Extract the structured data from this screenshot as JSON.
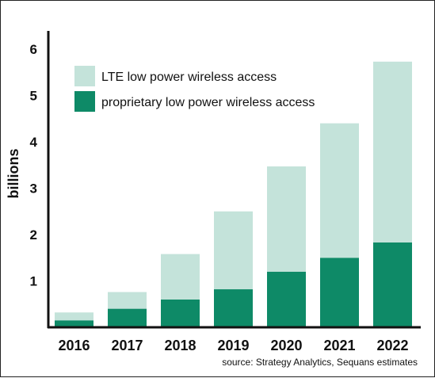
{
  "chart_data": {
    "type": "bar",
    "stacked": true,
    "categories": [
      "2016",
      "2017",
      "2018",
      "2019",
      "2020",
      "2021",
      "2022"
    ],
    "series": [
      {
        "name": "proprietary low power wireless access",
        "color": "#0e8a67",
        "values": [
          0.15,
          0.4,
          0.6,
          0.82,
          1.2,
          1.5,
          1.83
        ]
      },
      {
        "name": "LTE low power wireless access",
        "color": "#c4e3da",
        "values": [
          0.17,
          0.36,
          0.98,
          1.68,
          2.27,
          2.9,
          3.9
        ]
      }
    ],
    "ylabel": "billions",
    "ylim": [
      0,
      6.3
    ],
    "yticks": [
      "1",
      "2",
      "3",
      "4",
      "5",
      "6"
    ],
    "grid": false,
    "legend_position": "top-left",
    "source": "source: Strategy Analytics, Sequans estimates"
  }
}
